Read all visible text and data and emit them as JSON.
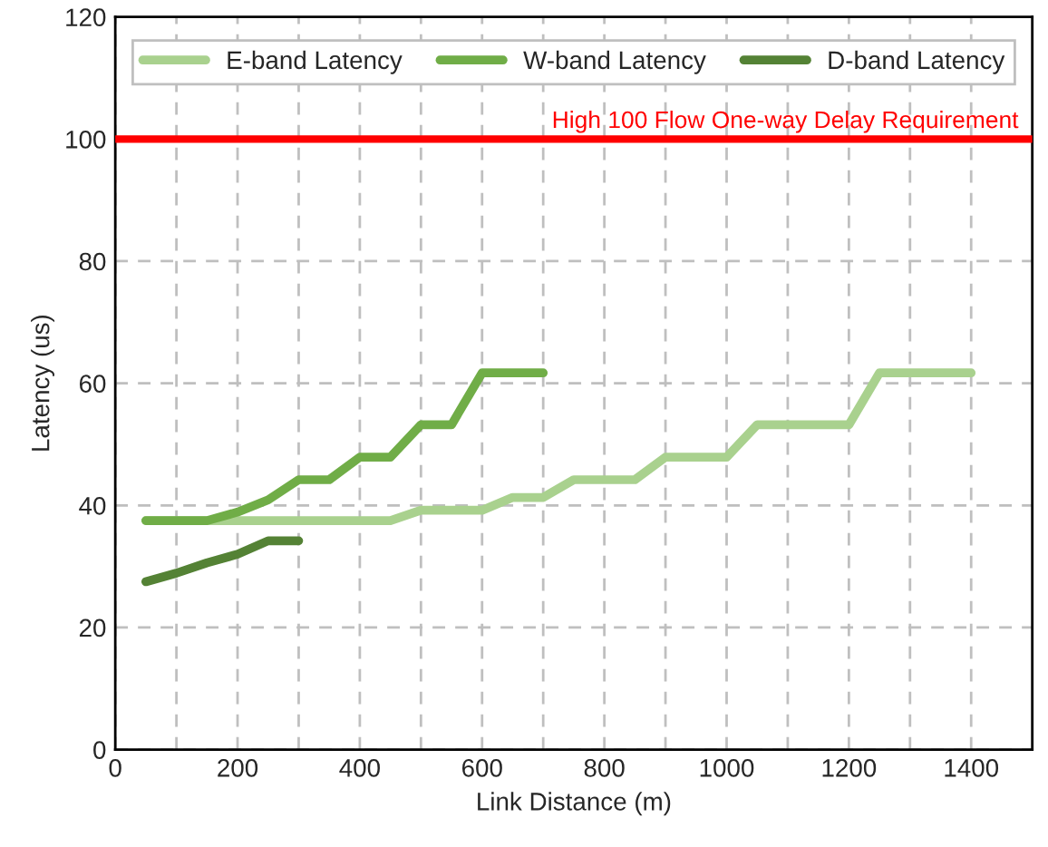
{
  "chart_data": {
    "type": "line",
    "xlabel": "Link Distance (m)",
    "ylabel": "Latency (us)",
    "xlim": [
      0,
      1500
    ],
    "xticks": [
      0,
      {
        "value": 100,
        "label": null
      },
      200,
      {
        "value": 300,
        "label": null
      },
      400,
      {
        "value": 500,
        "label": null
      },
      600,
      {
        "value": 700,
        "label": null
      },
      800,
      {
        "value": 900,
        "label": null
      },
      1000,
      {
        "value": 1100,
        "label": null
      },
      1200,
      {
        "value": 1300,
        "label": null
      },
      1400
    ],
    "ylim": [
      0,
      120
    ],
    "yticks": [
      0,
      20,
      40,
      60,
      80,
      100,
      120
    ],
    "grid": true,
    "legend": "top",
    "line_style": "solid",
    "series": [
      {
        "name": "E-band Latency",
        "color": "#a9d18e",
        "x": [
          50,
          100,
          150,
          200,
          250,
          300,
          350,
          400,
          450,
          500,
          550,
          600,
          650,
          700,
          750,
          800,
          850,
          900,
          950,
          1000,
          1050,
          1100,
          1150,
          1200,
          1250,
          1300,
          1350,
          1400
        ],
        "values": [
          37.5,
          37.5,
          37.5,
          37.5,
          37.5,
          37.5,
          37.5,
          37.5,
          37.5,
          39.2,
          39.2,
          39.2,
          41.3,
          41.3,
          44.2,
          44.2,
          44.2,
          47.9,
          47.9,
          47.9,
          53.2,
          53.2,
          53.2,
          53.2,
          61.7,
          61.7,
          61.7,
          61.7
        ]
      },
      {
        "name": "W-band Latency",
        "color": "#70ad47",
        "x": [
          50,
          100,
          150,
          200,
          250,
          300,
          350,
          400,
          450,
          500,
          550,
          600,
          650,
          700
        ],
        "values": [
          37.5,
          37.5,
          37.5,
          38.9,
          40.9,
          44.2,
          44.2,
          47.9,
          47.9,
          53.2,
          53.2,
          61.7,
          61.7,
          61.7
        ]
      },
      {
        "name": "D-band Latency",
        "color": "#548235",
        "x": [
          50,
          100,
          150,
          200,
          250,
          300
        ],
        "values": [
          27.5,
          28.9,
          30.6,
          32.0,
          34.2,
          34.2
        ]
      }
    ],
    "ref_lines": [
      {
        "axis": "y",
        "value": 100,
        "label": "High 100 Flow One-way Delay Requirement",
        "color": "#ff0000",
        "line_style": "solid"
      }
    ]
  }
}
